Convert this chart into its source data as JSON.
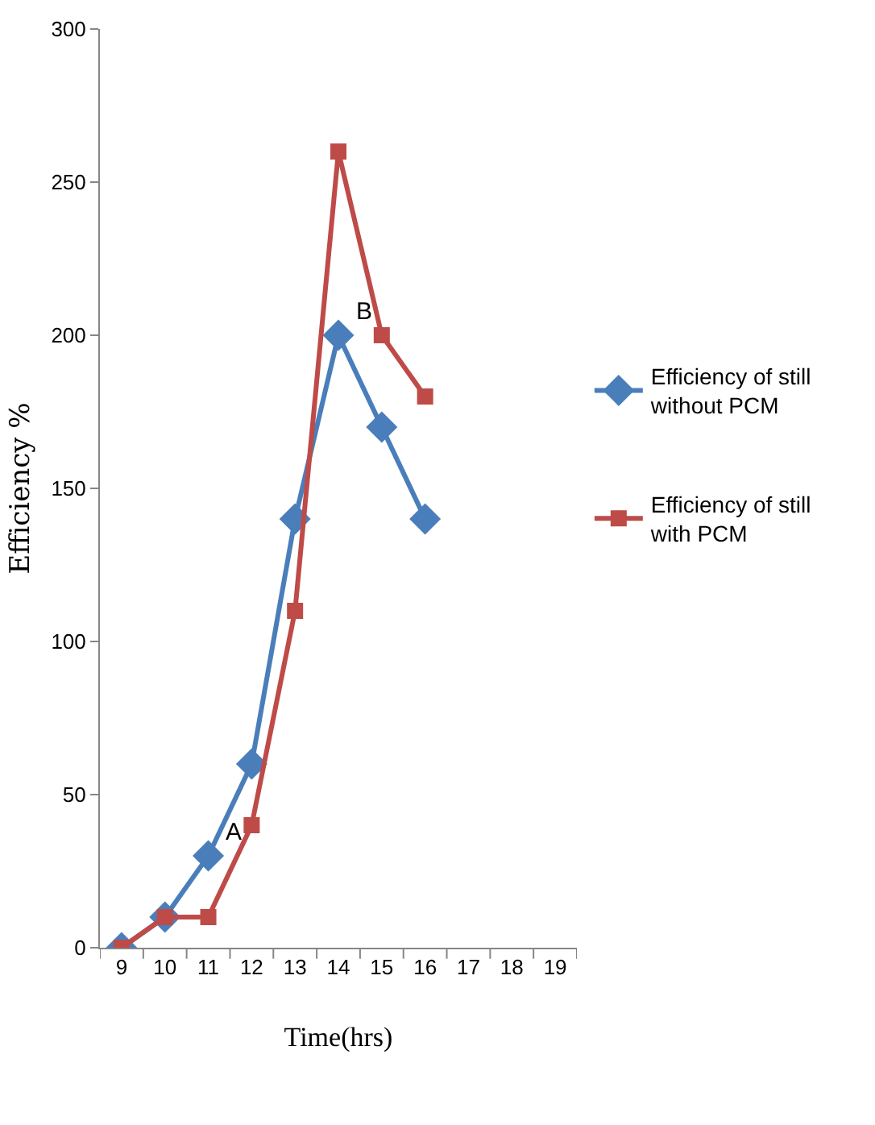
{
  "chart_data": {
    "type": "line",
    "xlabel": "Time(hrs)",
    "ylabel": "Efficiency %",
    "categories": [
      "9",
      "10",
      "11",
      "12",
      "13",
      "14",
      "15",
      "16",
      "17",
      "18",
      "19"
    ],
    "series": [
      {
        "name": "Efficiency of still without PCM",
        "color": "#4a7ebb",
        "marker": "diamond",
        "values": [
          0,
          10,
          30,
          60,
          140,
          200,
          170,
          140,
          null,
          null,
          null
        ]
      },
      {
        "name": "Efficiency of still with PCM",
        "color": "#be4b48",
        "marker": "square",
        "values": [
          0,
          10,
          10,
          40,
          110,
          260,
          200,
          180,
          null,
          null,
          null
        ]
      }
    ],
    "ylim": [
      0,
      300
    ],
    "yticks": [
      0,
      50,
      100,
      150,
      200,
      250,
      300
    ],
    "grid": false,
    "legend": "right",
    "line_style": "solid",
    "annotations": [
      {
        "text": "A",
        "x": "11",
        "y": 30
      },
      {
        "text": "B",
        "x": "14",
        "y": 200
      }
    ]
  }
}
